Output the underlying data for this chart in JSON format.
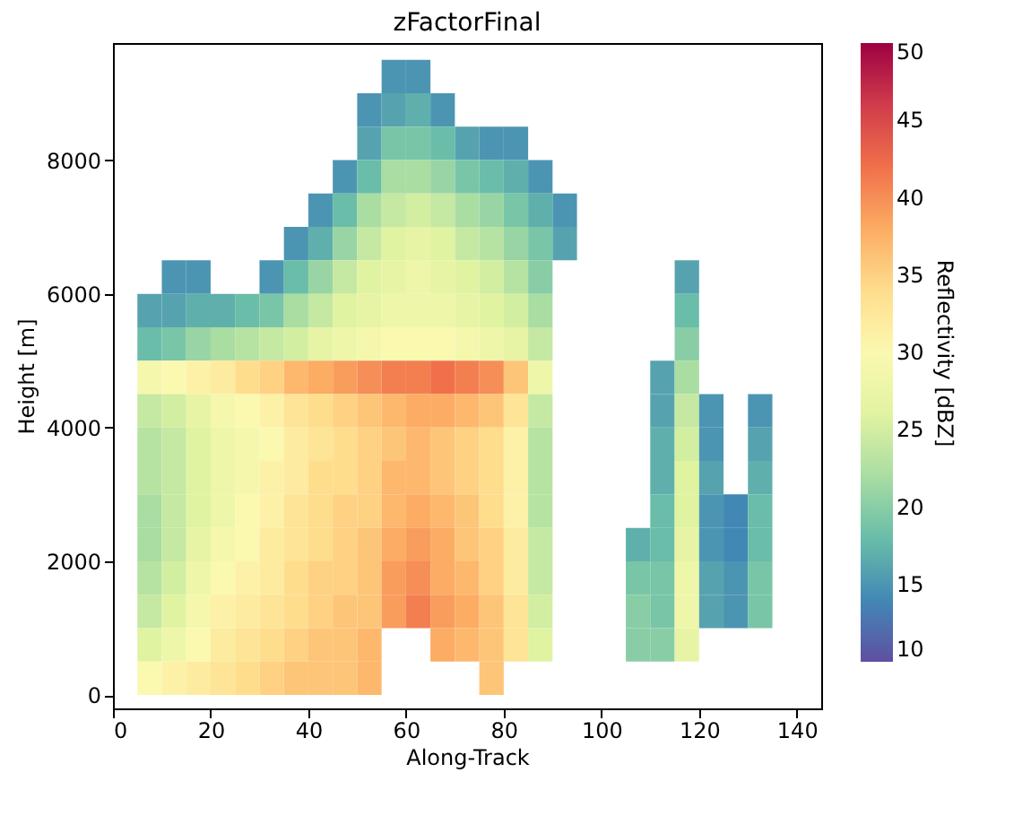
{
  "chart_data": {
    "type": "heatmap",
    "title": "zFactorFinal",
    "xlabel": "Along-Track",
    "ylabel": "Height [m]",
    "clabel": "Reflectivity [dBZ]",
    "x": [
      7.5,
      12.5,
      17.5,
      22.5,
      27.5,
      32.5,
      37.5,
      42.5,
      47.5,
      52.5,
      57.5,
      62.5,
      67.5,
      72.5,
      77.5,
      82.5,
      87.5,
      92.5,
      97.5,
      102.5,
      107.5,
      112.5,
      117.5,
      122.5,
      127.5,
      132.5,
      137.5
    ],
    "y": [
      9250,
      8750,
      8250,
      7750,
      7250,
      6750,
      6250,
      5750,
      5250,
      4750,
      4250,
      3750,
      3250,
      2750,
      2250,
      1750,
      1250,
      750,
      250
    ],
    "cells": [
      [
        null,
        null,
        null,
        null,
        null,
        null,
        null,
        null,
        null,
        null,
        15,
        15,
        null,
        null,
        null,
        null,
        null,
        null,
        null,
        null,
        null,
        null,
        null,
        null,
        null,
        null,
        null
      ],
      [
        null,
        null,
        null,
        null,
        null,
        null,
        null,
        null,
        null,
        15,
        16,
        17,
        15,
        null,
        null,
        null,
        null,
        null,
        null,
        null,
        null,
        null,
        null,
        null,
        null,
        null,
        null
      ],
      [
        null,
        null,
        null,
        null,
        null,
        null,
        null,
        null,
        null,
        16,
        19,
        19,
        18,
        16,
        15,
        15,
        null,
        null,
        null,
        null,
        null,
        null,
        null,
        null,
        null,
        null,
        null
      ],
      [
        null,
        null,
        null,
        null,
        null,
        null,
        null,
        null,
        15,
        18,
        22,
        22,
        21,
        19,
        18,
        17,
        15,
        null,
        null,
        null,
        null,
        null,
        null,
        null,
        null,
        null,
        null
      ],
      [
        null,
        null,
        null,
        null,
        null,
        null,
        null,
        15,
        18,
        22,
        24,
        25,
        24,
        22,
        21,
        19,
        17,
        15,
        null,
        null,
        null,
        null,
        null,
        null,
        null,
        null,
        null
      ],
      [
        null,
        null,
        null,
        null,
        null,
        null,
        15,
        17,
        21,
        24,
        26,
        27,
        26,
        24,
        23,
        21,
        19,
        16,
        null,
        null,
        null,
        null,
        null,
        null,
        null,
        null,
        null
      ],
      [
        null,
        15,
        15,
        null,
        null,
        15,
        18,
        21,
        24,
        26,
        27,
        28,
        27,
        26,
        25,
        23,
        20,
        null,
        null,
        null,
        null,
        null,
        16,
        null,
        null,
        null,
        null
      ],
      [
        16,
        16,
        17,
        17,
        18,
        19,
        22,
        24,
        26,
        27,
        28,
        28,
        28,
        27,
        26,
        25,
        22,
        null,
        null,
        null,
        null,
        null,
        18,
        null,
        null,
        null,
        null
      ],
      [
        18,
        19,
        21,
        22,
        23,
        24,
        25,
        27,
        28,
        29,
        30,
        30,
        30,
        29,
        28,
        27,
        24,
        null,
        null,
        null,
        null,
        null,
        20,
        null,
        null,
        null,
        null
      ],
      [
        29,
        30,
        31,
        32,
        34,
        35,
        37,
        38,
        39,
        40,
        41,
        41,
        42,
        41,
        40,
        36,
        28,
        null,
        null,
        null,
        null,
        16,
        22,
        null,
        null,
        null,
        null
      ],
      [
        24,
        25,
        27,
        29,
        30,
        31,
        33,
        34,
        35,
        36,
        37,
        38,
        38,
        37,
        36,
        33,
        24,
        null,
        null,
        null,
        null,
        16,
        24,
        15,
        null,
        15,
        null
      ],
      [
        23,
        24,
        26,
        28,
        29,
        30,
        32,
        33,
        34,
        35,
        36,
        37,
        36,
        35,
        34,
        31,
        23,
        null,
        null,
        null,
        null,
        17,
        25,
        15,
        null,
        16,
        null
      ],
      [
        23,
        24,
        26,
        28,
        29,
        31,
        32,
        34,
        34,
        35,
        37,
        37,
        36,
        35,
        34,
        31,
        23,
        null,
        null,
        null,
        null,
        17,
        26,
        16,
        null,
        17,
        null
      ],
      [
        22,
        24,
        26,
        28,
        30,
        31,
        33,
        34,
        35,
        35,
        37,
        38,
        37,
        36,
        34,
        31,
        23,
        null,
        null,
        null,
        null,
        18,
        26,
        15,
        14,
        18,
        null
      ],
      [
        22,
        24,
        27,
        29,
        30,
        32,
        33,
        34,
        35,
        36,
        38,
        39,
        38,
        36,
        35,
        32,
        24,
        null,
        null,
        null,
        17,
        18,
        27,
        15,
        14,
        18,
        null
      ],
      [
        23,
        25,
        28,
        30,
        31,
        32,
        34,
        35,
        35,
        36,
        39,
        40,
        38,
        37,
        35,
        32,
        24,
        null,
        null,
        null,
        19,
        19,
        28,
        16,
        15,
        19,
        null
      ],
      [
        24,
        26,
        29,
        31,
        32,
        33,
        34,
        35,
        36,
        36,
        39,
        41,
        39,
        38,
        36,
        33,
        25,
        null,
        null,
        null,
        20,
        19,
        28,
        16,
        15,
        19,
        null
      ],
      [
        26,
        28,
        30,
        32,
        33,
        34,
        35,
        36,
        36,
        37,
        null,
        null,
        38,
        37,
        36,
        33,
        26,
        null,
        null,
        null,
        20,
        20,
        27,
        null,
        null,
        null,
        null
      ],
      [
        30,
        31,
        32,
        33,
        34,
        35,
        36,
        36,
        36,
        37,
        null,
        null,
        null,
        null,
        36,
        null,
        null,
        null,
        null,
        null,
        null,
        null,
        null,
        null,
        null,
        null,
        null
      ]
    ],
    "xlim": [
      0,
      145
    ],
    "xticks": [
      0,
      20,
      40,
      60,
      80,
      100,
      120,
      140
    ],
    "ylim": [
      -200,
      9750
    ],
    "yticks": [
      0,
      2000,
      4000,
      6000,
      8000
    ],
    "clim": [
      10,
      50
    ],
    "cticks": [
      10,
      15,
      20,
      25,
      30,
      35,
      40,
      45,
      50
    ],
    "grid": false
  }
}
